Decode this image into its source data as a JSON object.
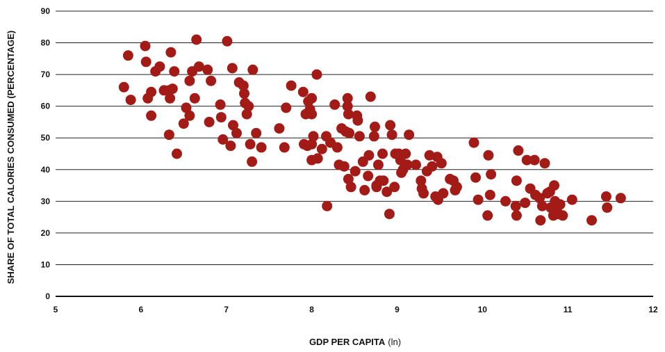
{
  "chart_data": {
    "type": "scatter",
    "xlabel": "GDP PER CAPITA",
    "xlabel_unit": "(ln)",
    "ylabel": "SHARE OF TOTAL CALORIES CONSUMED (PERCENTAGE)",
    "xlim": [
      5,
      12
    ],
    "ylim": [
      0,
      90
    ],
    "x_ticks": [
      5,
      6,
      7,
      8,
      9,
      10,
      11,
      12
    ],
    "y_ticks": [
      0,
      10,
      20,
      30,
      40,
      50,
      60,
      70,
      80,
      90
    ],
    "grid": "horizontal",
    "marker_color": "#A31B17",
    "points": [
      [
        5.8,
        66
      ],
      [
        5.85,
        76
      ],
      [
        5.88,
        62
      ],
      [
        6.05,
        79
      ],
      [
        6.06,
        74
      ],
      [
        6.08,
        62.5
      ],
      [
        6.12,
        64.5
      ],
      [
        6.12,
        57
      ],
      [
        6.17,
        71
      ],
      [
        6.22,
        72.5
      ],
      [
        6.27,
        65
      ],
      [
        6.33,
        65
      ],
      [
        6.33,
        51
      ],
      [
        6.34,
        62.5
      ],
      [
        6.35,
        77
      ],
      [
        6.37,
        65.5
      ],
      [
        6.39,
        71
      ],
      [
        6.42,
        45
      ],
      [
        6.5,
        54.5
      ],
      [
        6.53,
        59.5
      ],
      [
        6.57,
        68
      ],
      [
        6.57,
        57
      ],
      [
        6.6,
        71
      ],
      [
        6.63,
        62.5
      ],
      [
        6.65,
        81
      ],
      [
        6.68,
        72.5
      ],
      [
        6.78,
        71.5
      ],
      [
        6.8,
        55
      ],
      [
        6.82,
        68
      ],
      [
        6.93,
        60.5
      ],
      [
        6.94,
        56.5
      ],
      [
        6.96,
        49.5
      ],
      [
        7.01,
        80.5
      ],
      [
        7.05,
        47.5
      ],
      [
        7.07,
        72
      ],
      [
        7.08,
        54
      ],
      [
        7.12,
        51.5
      ],
      [
        7.15,
        67.5
      ],
      [
        7.2,
        66.5
      ],
      [
        7.21,
        64
      ],
      [
        7.22,
        61
      ],
      [
        7.24,
        57.5
      ],
      [
        7.26,
        60
      ],
      [
        7.28,
        48
      ],
      [
        7.3,
        42.5
      ],
      [
        7.31,
        71.5
      ],
      [
        7.35,
        51.5
      ],
      [
        7.41,
        47
      ],
      [
        7.62,
        53
      ],
      [
        7.68,
        47
      ],
      [
        7.7,
        59.5
      ],
      [
        7.76,
        66.5
      ],
      [
        7.9,
        64.5
      ],
      [
        7.91,
        48
      ],
      [
        7.93,
        57.5
      ],
      [
        7.95,
        47.5
      ],
      [
        7.96,
        61.5
      ],
      [
        7.98,
        59
      ],
      [
        8.0,
        62.5
      ],
      [
        8.0,
        57.5
      ],
      [
        8.0,
        48
      ],
      [
        8.0,
        43
      ],
      [
        8.02,
        50.5
      ],
      [
        8.06,
        70
      ],
      [
        8.07,
        43.5
      ],
      [
        8.12,
        46.5
      ],
      [
        8.17,
        50.5
      ],
      [
        8.18,
        28.5
      ],
      [
        8.22,
        48.5
      ],
      [
        8.27,
        60.5
      ],
      [
        8.3,
        47
      ],
      [
        8.32,
        41.5
      ],
      [
        8.35,
        53
      ],
      [
        8.38,
        41
      ],
      [
        8.4,
        52
      ],
      [
        8.42,
        62.5
      ],
      [
        8.42,
        60
      ],
      [
        8.43,
        57.5
      ],
      [
        8.43,
        37
      ],
      [
        8.44,
        51.5
      ],
      [
        8.46,
        34.5
      ],
      [
        8.51,
        39.5
      ],
      [
        8.53,
        57
      ],
      [
        8.54,
        55.5
      ],
      [
        8.56,
        50.5
      ],
      [
        8.6,
        42.5
      ],
      [
        8.62,
        33.5
      ],
      [
        8.66,
        38
      ],
      [
        8.67,
        44.5
      ],
      [
        8.69,
        63
      ],
      [
        8.73,
        50.5
      ],
      [
        8.74,
        53.5
      ],
      [
        8.76,
        35
      ],
      [
        8.76,
        34.5
      ],
      [
        8.78,
        41.5
      ],
      [
        8.8,
        36.5
      ],
      [
        8.83,
        45
      ],
      [
        8.84,
        36.5
      ],
      [
        8.88,
        33
      ],
      [
        8.91,
        26
      ],
      [
        8.92,
        54
      ],
      [
        8.94,
        51
      ],
      [
        8.97,
        34.5
      ],
      [
        8.98,
        45
      ],
      [
        9.02,
        45
      ],
      [
        9.04,
        43
      ],
      [
        9.05,
        39
      ],
      [
        9.07,
        40
      ],
      [
        9.1,
        45
      ],
      [
        9.12,
        41.5
      ],
      [
        9.14,
        51
      ],
      [
        9.22,
        41.5
      ],
      [
        9.28,
        36.5
      ],
      [
        9.29,
        34
      ],
      [
        9.31,
        32.5
      ],
      [
        9.35,
        39.5
      ],
      [
        9.38,
        44.5
      ],
      [
        9.41,
        41
      ],
      [
        9.45,
        31.5
      ],
      [
        9.47,
        44
      ],
      [
        9.48,
        30.5
      ],
      [
        9.52,
        42
      ],
      [
        9.54,
        32.5
      ],
      [
        9.62,
        37
      ],
      [
        9.66,
        36.5
      ],
      [
        9.68,
        33.5
      ],
      [
        9.7,
        34.5
      ],
      [
        9.9,
        48.5
      ],
      [
        9.92,
        37.5
      ],
      [
        9.95,
        30.5
      ],
      [
        10.06,
        25.5
      ],
      [
        10.07,
        44.5
      ],
      [
        10.09,
        32
      ],
      [
        10.1,
        38.5
      ],
      [
        10.27,
        30
      ],
      [
        10.39,
        28.5
      ],
      [
        10.4,
        36.5
      ],
      [
        10.4,
        25.5
      ],
      [
        10.42,
        46
      ],
      [
        10.5,
        29.5
      ],
      [
        10.52,
        43
      ],
      [
        10.56,
        34
      ],
      [
        10.61,
        43
      ],
      [
        10.62,
        32
      ],
      [
        10.67,
        31
      ],
      [
        10.68,
        24
      ],
      [
        10.7,
        28.5
      ],
      [
        10.73,
        42
      ],
      [
        10.76,
        32.5
      ],
      [
        10.79,
        33
      ],
      [
        10.8,
        28
      ],
      [
        10.83,
        25.5
      ],
      [
        10.84,
        35
      ],
      [
        10.85,
        30
      ],
      [
        10.87,
        27.5
      ],
      [
        10.89,
        26
      ],
      [
        10.91,
        29
      ],
      [
        10.94,
        25.5
      ],
      [
        11.05,
        30.5
      ],
      [
        11.28,
        24
      ],
      [
        11.45,
        31.5
      ],
      [
        11.46,
        28
      ],
      [
        11.62,
        31
      ]
    ]
  }
}
